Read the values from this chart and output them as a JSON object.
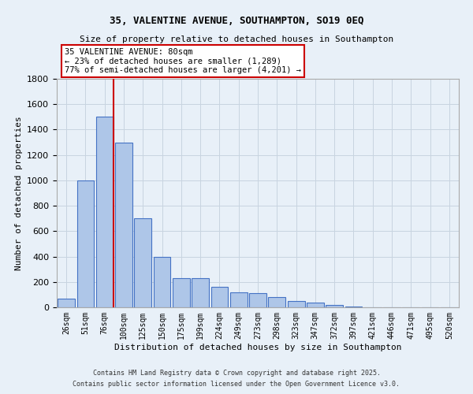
{
  "title_line1": "35, VALENTINE AVENUE, SOUTHAMPTON, SO19 0EQ",
  "title_line2": "Size of property relative to detached houses in Southampton",
  "xlabel": "Distribution of detached houses by size in Southampton",
  "ylabel": "Number of detached properties",
  "categories": [
    "26sqm",
    "51sqm",
    "76sqm",
    "100sqm",
    "125sqm",
    "150sqm",
    "175sqm",
    "199sqm",
    "224sqm",
    "249sqm",
    "273sqm",
    "298sqm",
    "323sqm",
    "347sqm",
    "372sqm",
    "397sqm",
    "421sqm",
    "446sqm",
    "471sqm",
    "495sqm",
    "520sqm"
  ],
  "values": [
    70,
    1000,
    1500,
    1300,
    700,
    400,
    230,
    230,
    160,
    120,
    110,
    80,
    50,
    40,
    20,
    5,
    3,
    2,
    1,
    1,
    1
  ],
  "bar_color": "#aec6e8",
  "bar_edge_color": "#4472c4",
  "background_color": "#e8f0f8",
  "grid_color": "#c8d4e0",
  "red_line_x": 2,
  "annotation_text": "35 VALENTINE AVENUE: 80sqm\n← 23% of detached houses are smaller (1,289)\n77% of semi-detached houses are larger (4,201) →",
  "annotation_box_color": "#ffffff",
  "annotation_box_edge": "#cc0000",
  "ylim": [
    0,
    1800
  ],
  "yticks": [
    0,
    200,
    400,
    600,
    800,
    1000,
    1200,
    1400,
    1600,
    1800
  ],
  "footer_line1": "Contains HM Land Registry data © Crown copyright and database right 2025.",
  "footer_line2": "Contains public sector information licensed under the Open Government Licence v3.0."
}
